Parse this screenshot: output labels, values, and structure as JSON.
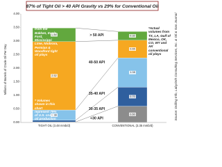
{
  "chart_data": {
    "type": "stacked_bar",
    "title": "87% of Tight Oil > 40 API Gravity vs 29% for Conventional Oil",
    "ylabel": "Millions of Barrels of Crude Oil Per Day",
    "categories": [
      "TIGHT OIL (3.48 mmb/d)",
      "CONVENTIONAL (3.35 mmb/d)"
    ],
    "series": [
      {
        "name": "<30 API",
        "color": "#8c8c8c",
        "values": [
          0.02,
          0.6
        ],
        "value_labels": [
          "0.02",
          "0.60"
        ]
      },
      {
        "name": "30-35 API",
        "color": "#2f5f9e",
        "values": [
          0.06,
          0.7
        ],
        "value_labels": [
          "0.06",
          "0.70"
        ]
      },
      {
        "name": "35-40 API",
        "color": "#86c3ea",
        "values": [
          0.38,
          1.08
        ],
        "value_labels": [
          "0.38",
          "1.08"
        ]
      },
      {
        "name": "40-50 API",
        "color": "#f6a821",
        "values": [
          2.52,
          0.65
        ],
        "value_labels": [
          "2.52",
          "0.65"
        ]
      },
      {
        "name": "> 50 API",
        "color": "#62a83e",
        "values": [
          0.5,
          0.32
        ],
        "value_labels": [
          "0.50",
          "0.32"
        ]
      }
    ],
    "ylim": [
      0,
      4
    ],
    "yticks": [
      {
        "value": 0,
        "label": "0.00"
      },
      {
        "value": 0.5,
        "label": "0.50"
      },
      {
        "value": 1,
        "label": "1.00"
      },
      {
        "value": 1.5,
        "label": "1.50"
      },
      {
        "value": 2,
        "label": "2.00"
      },
      {
        "value": 2.5,
        "label": "2.50"
      },
      {
        "value": 3,
        "label": "3.00"
      },
      {
        "value": 3.5,
        "label": "3.50"
      },
      {
        "value": 4,
        "label": "4.00"
      }
    ],
    "annotations": [
      "*Actual volumes from the Bakken, Eagle Ford, Mississippi Lime, Niobrara, Permian & Woodford tight oil plays",
      "*Actual volumes from TX, LA, Gulf of Mexico, OK, CO, WY and AK conventional oil plays",
      "* Volumes shown in this chart represent 79% of U.S. crude oil production",
      "Source: Drilling Info, Labyrinth Consulting Services, Inc. & Oil & Gas Journal"
    ]
  }
}
